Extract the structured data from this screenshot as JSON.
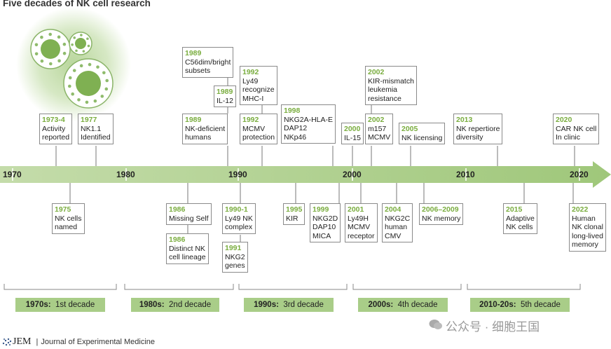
{
  "title": "Five decades of NK cell research",
  "axis_years": [
    "1970",
    "1980",
    "1990",
    "2000",
    "2010",
    "2020"
  ],
  "top_events": [
    {
      "year": "1973-4",
      "text": "Activity\nreported"
    },
    {
      "year": "1977",
      "text": "NK1.1\nIdentified"
    },
    {
      "year": "1989",
      "text": "C56dim/bright\nsubsets"
    },
    {
      "year": "1989",
      "text": "IL-12"
    },
    {
      "year": "1989",
      "text": "NK-deficient\nhumans"
    },
    {
      "year": "1992",
      "text": "Ly49\nrecognize\nMHC-I"
    },
    {
      "year": "1992",
      "text": "MCMV\nprotection"
    },
    {
      "year": "1998",
      "text": "NKG2A-HLA-E\nDAP12\nNKp46"
    },
    {
      "year": "2000",
      "text": "IL-15"
    },
    {
      "year": "2002",
      "text": "KIR-mismatch\nleukemia\nresistance"
    },
    {
      "year": "2002",
      "text": "m157\nMCMV"
    },
    {
      "year": "2005",
      "text": "NK licensing"
    },
    {
      "year": "2013",
      "text": "NK repertiore\ndiversity"
    },
    {
      "year": "2020",
      "text": "CAR NK cell\nIn clinic"
    }
  ],
  "bottom_events": [
    {
      "year": "1975",
      "text": "NK cells\nnamed"
    },
    {
      "year": "1986",
      "text": "Missing Self"
    },
    {
      "year": "1986",
      "text": "Distinct NK\ncell lineage"
    },
    {
      "year": "1990-1",
      "text": "Ly49 NK\ncomplex"
    },
    {
      "year": "1991",
      "text": "NKG2\ngenes"
    },
    {
      "year": "1995",
      "text": "KIR"
    },
    {
      "year": "1999",
      "text": "NKG2D\nDAP10\nMICA"
    },
    {
      "year": "2001",
      "text": "Ly49H\nMCMV\nreceptor"
    },
    {
      "year": "2004",
      "text": "NKG2C\nhuman\nCMV"
    },
    {
      "year": "2006–2009",
      "text": "NK memory"
    },
    {
      "year": "2015",
      "text": "Adaptive\nNK cells"
    },
    {
      "year": "2022",
      "text": "Human\nNK clonal\nlong-lived\nmemory"
    }
  ],
  "decades": [
    {
      "bold": "1970s:",
      "text": "1st decade"
    },
    {
      "bold": "1980s:",
      "text": "2nd decade"
    },
    {
      "bold": "1990s:",
      "text": "3rd decade"
    },
    {
      "bold": "2000s:",
      "text": "4th decade"
    },
    {
      "bold": "2010-20s:",
      "text": "5th decade"
    }
  ],
  "footer": {
    "logo": "JEM",
    "separator": "|",
    "journal": "Journal of Experimental Medicine"
  },
  "watermark": "公众号 · 细胞王国",
  "colors": {
    "accent": "#7aad3f",
    "arrow": "#a9cd88",
    "decade_fill": "#a9cd88",
    "box_border": "#8a8a8a"
  }
}
